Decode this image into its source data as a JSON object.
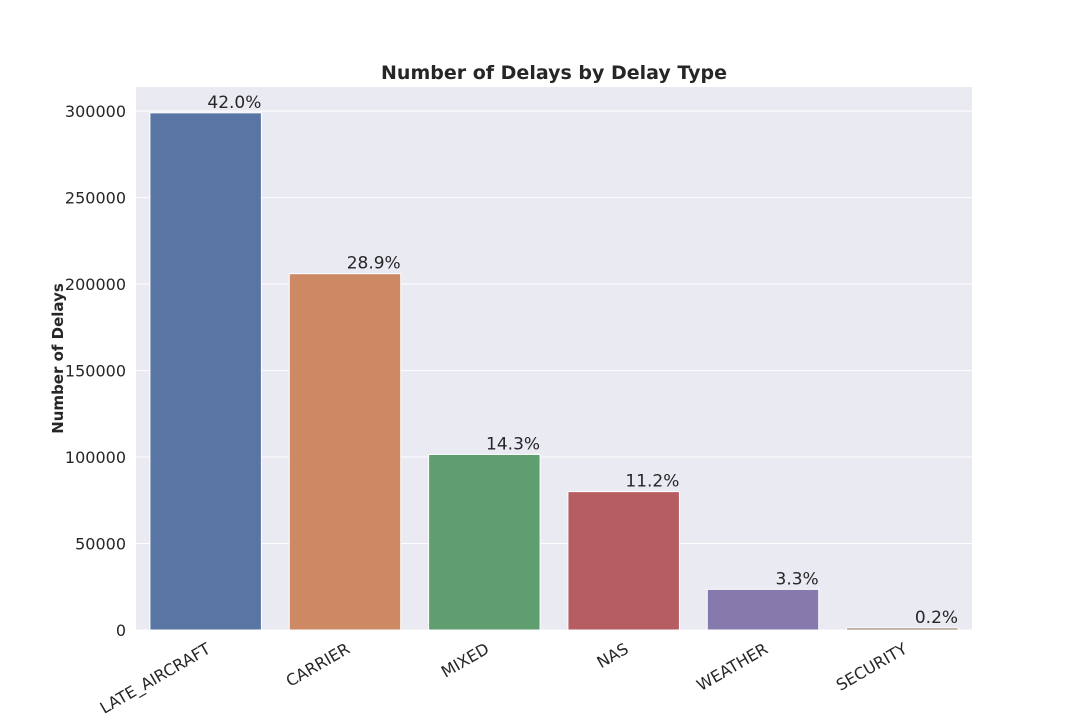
{
  "chart_data": {
    "type": "bar",
    "title": "Number of Delays by Delay Type",
    "xlabel": "",
    "ylabel": "Number of Delays",
    "categories": [
      "LATE_AIRCRAFT",
      "CARRIER",
      "MIXED",
      "NAS",
      "WEATHER",
      "SECURITY"
    ],
    "values": [
      299000,
      206000,
      101500,
      80000,
      23500,
      1200
    ],
    "data_labels": [
      "42.0%",
      "28.9%",
      "14.3%",
      "11.2%",
      "3.3%",
      "0.2%"
    ],
    "colors": [
      "#5975a4",
      "#cc8963",
      "#5f9e6e",
      "#b55d60",
      "#857aab",
      "#8d7866"
    ],
    "yticks": [
      0,
      50000,
      100000,
      150000,
      200000,
      250000,
      300000
    ],
    "ytick_labels": [
      "0",
      "50000",
      "100000",
      "150000",
      "200000",
      "250000",
      "300000"
    ],
    "ylim": [
      0,
      313950
    ],
    "grid": true,
    "background": "#eaeaf2",
    "xtick_rotation_deg": 30
  }
}
